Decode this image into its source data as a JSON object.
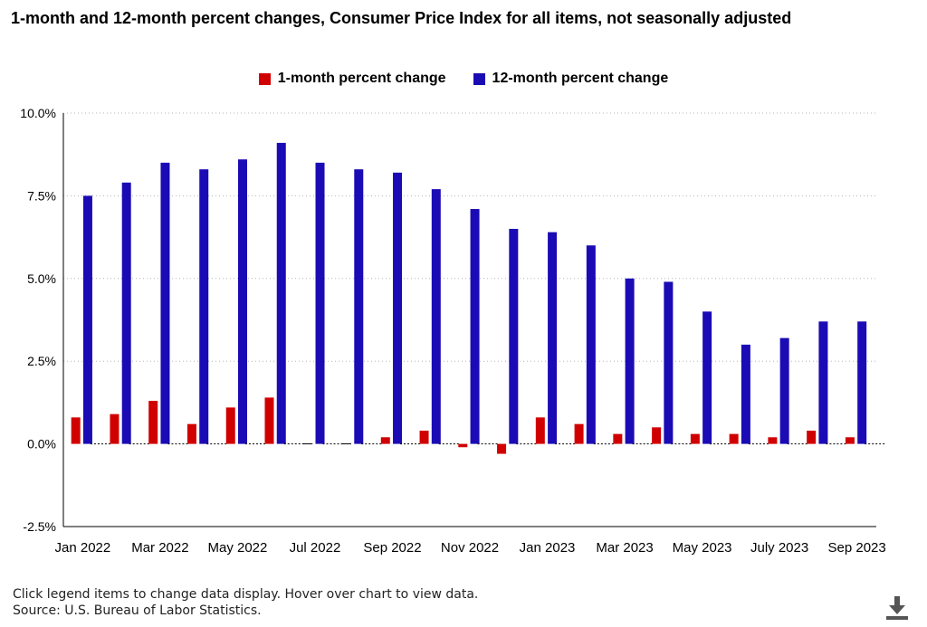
{
  "title": "1-month and 12-month percent changes, Consumer Price Index for all items, not seasonally adjusted",
  "footer": {
    "line1": "Click legend items to change data display. Hover over chart to view data.",
    "line2": "Source: U.S. Bureau of Labor Statistics."
  },
  "icons": {
    "download": "download-icon"
  },
  "colors": {
    "one_month": "#d10000",
    "twelve_month": "#1a0bb5"
  },
  "chart_data": {
    "type": "bar",
    "title": "1-month and 12-month percent changes, Consumer Price Index for all items, not seasonally adjusted",
    "xlabel": "",
    "ylabel": "",
    "ylim": [
      -2.5,
      10.0
    ],
    "yticks": [
      "10.0%",
      "7.5%",
      "5.0%",
      "2.5%",
      "0.0%",
      "-2.5%"
    ],
    "ytick_values": [
      10.0,
      7.5,
      5.0,
      2.5,
      0.0,
      -2.5
    ],
    "grid": true,
    "legend_position": "top-center",
    "categories": [
      "Jan 2022",
      "Feb 2022",
      "Mar 2022",
      "Apr 2022",
      "May 2022",
      "Jun 2022",
      "Jul 2022",
      "Aug 2022",
      "Sep 2022",
      "Oct 2022",
      "Nov 2022",
      "Dec 2022",
      "Jan 2023",
      "Feb 2023",
      "Mar 2023",
      "Apr 2023",
      "May 2023",
      "Jun 2023",
      "July 2023",
      "Aug 2023",
      "Sep 2023"
    ],
    "xtick_labels": [
      "Jan 2022",
      "Mar 2022",
      "May 2022",
      "Jul 2022",
      "Sep 2022",
      "Nov 2022",
      "Jan 2023",
      "Mar 2023",
      "May 2023",
      "July 2023",
      "Sep 2023"
    ],
    "xtick_indices": [
      0,
      2,
      4,
      6,
      8,
      10,
      12,
      14,
      16,
      18,
      20
    ],
    "series": [
      {
        "name": "1-month percent change",
        "values": [
          0.8,
          0.9,
          1.3,
          0.6,
          1.1,
          1.4,
          0.0,
          0.0,
          0.2,
          0.4,
          -0.1,
          -0.3,
          0.8,
          0.6,
          0.3,
          0.5,
          0.3,
          0.3,
          0.2,
          0.4,
          0.2
        ]
      },
      {
        "name": "12-month percent change",
        "values": [
          7.5,
          7.9,
          8.5,
          8.3,
          8.6,
          9.1,
          8.5,
          8.3,
          8.2,
          7.7,
          7.1,
          6.5,
          6.4,
          6.0,
          5.0,
          4.9,
          4.0,
          3.0,
          3.2,
          3.7,
          3.7
        ]
      }
    ]
  }
}
